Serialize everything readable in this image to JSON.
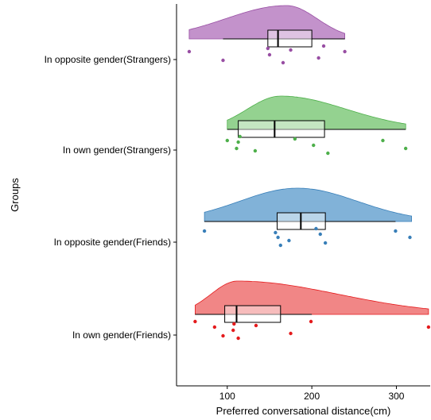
{
  "chart_data": {
    "type": "raincloud",
    "orientation": "horizontal",
    "xlabel": "Preferred conversational distance(cm)",
    "ylabel": "Groups",
    "xlim": [
      40,
      340
    ],
    "xticks": [
      100,
      200,
      300
    ],
    "grid": false,
    "legend": "none",
    "groups": [
      {
        "name": "In own gender(Friends)",
        "color": "#e41a1c",
        "fill": "#f08080",
        "density_range": [
          62,
          338
        ],
        "density_peak_at": 112,
        "box": {
          "min": 62,
          "q1": 97,
          "median": 111,
          "q3": 163,
          "max": 200
        },
        "points": [
          62,
          85,
          95,
          108,
          107,
          113,
          134,
          175,
          199,
          338
        ]
      },
      {
        "name": "In opposite gender(Friends)",
        "color": "#377eb8",
        "fill": "#7aaed6",
        "density_range": [
          73,
          318
        ],
        "density_peak_at": 183,
        "box": {
          "min": 73,
          "q1": 159,
          "median": 187,
          "q3": 216,
          "max": 299
        },
        "points": [
          73,
          160,
          163,
          157,
          173,
          205,
          210,
          216,
          299,
          316
        ]
      },
      {
        "name": "In own gender(Strangers)",
        "color": "#4daf4a",
        "fill": "#8ed08a",
        "density_range": [
          100,
          311
        ],
        "density_peak_at": 163,
        "box": {
          "min": 100,
          "q1": 113,
          "median": 156,
          "q3": 215,
          "max": 311
        },
        "points": [
          100,
          111,
          115,
          113,
          133,
          180,
          202,
          219,
          284,
          311
        ]
      },
      {
        "name": "In opposite gender(Strangers)",
        "color": "#984ea3",
        "fill": "#c08cc8",
        "density_range": [
          55,
          239
        ],
        "density_peak_at": 170,
        "box": {
          "min": 95,
          "q1": 148,
          "median": 160,
          "q3": 200,
          "max": 239
        },
        "points": [
          55,
          95,
          148,
          150,
          166,
          175,
          208,
          214,
          239
        ]
      }
    ]
  }
}
